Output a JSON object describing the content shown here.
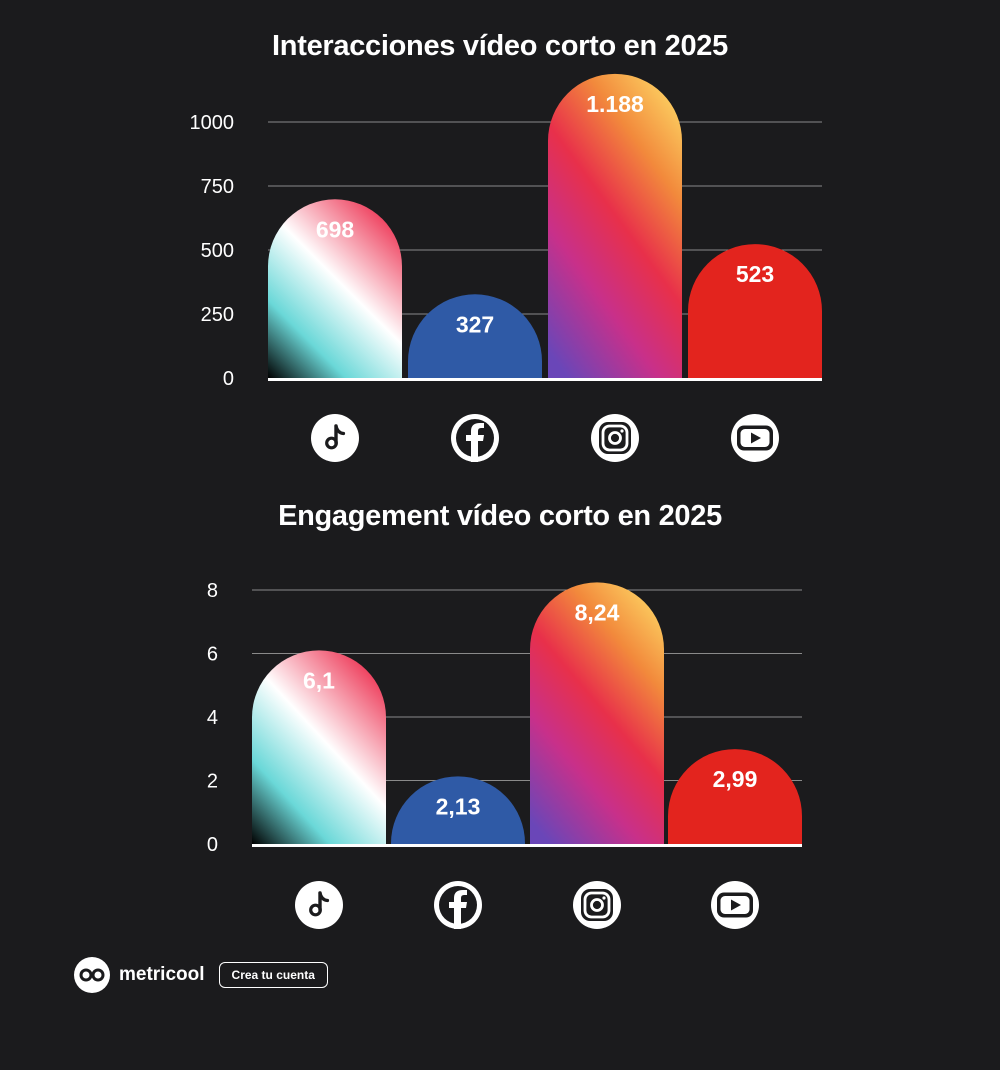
{
  "chart_data": [
    {
      "type": "bar",
      "title": "Interacciones vídeo corto en 2025",
      "categories": [
        "TikTok",
        "Facebook",
        "Instagram",
        "YouTube"
      ],
      "values": [
        698,
        327,
        1188,
        523
      ],
      "value_labels": [
        "698",
        "327",
        "1.188",
        "523"
      ],
      "yticks": [
        "0",
        "250",
        "500",
        "750",
        "1000"
      ],
      "ylim": [
        0,
        1000
      ],
      "grid": true,
      "xlabel": "",
      "ylabel": ""
    },
    {
      "type": "bar",
      "title": "Engagement vídeo corto en 2025",
      "categories": [
        "TikTok",
        "Facebook",
        "Instagram",
        "YouTube"
      ],
      "values": [
        6.1,
        2.13,
        8.24,
        2.99
      ],
      "value_labels": [
        "6,1",
        "2,13",
        "8,24",
        "2,99"
      ],
      "yticks": [
        "0",
        "2",
        "4",
        "6",
        "8"
      ],
      "ylim": [
        0,
        8
      ],
      "grid": true,
      "xlabel": "",
      "ylabel": ""
    }
  ],
  "icons": [
    "tiktok-icon",
    "facebook-icon",
    "instagram-icon",
    "youtube-icon"
  ],
  "colors": {
    "background": "#1b1b1d",
    "facebook": "#2f5aa6",
    "youtube": "#e3241e",
    "instagram": [
      "#fbc65c",
      "#f28a3c",
      "#e8304a",
      "#c8308a",
      "#6a46b8"
    ],
    "tiktok": [
      "#ee3e5c",
      "#ffffff",
      "#6ad8d8",
      "#000000"
    ]
  },
  "footer": {
    "brand": "metricool",
    "cta": "Crea tu cuenta"
  }
}
